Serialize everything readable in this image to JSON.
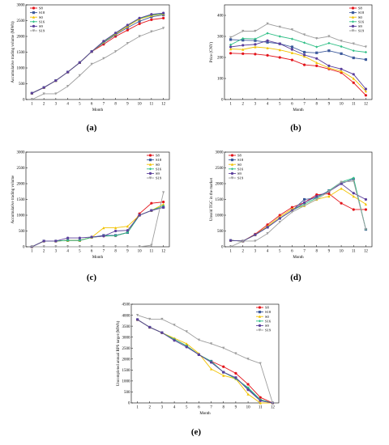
{
  "colors": {
    "S8": "#e3141b",
    "S18": "#3d5a9c",
    "S0": "#f2c300",
    "S16": "#2fbf86",
    "S9": "#5b3f9b",
    "S19": "#9e9e9e"
  },
  "chart_data": [
    {
      "id": "a",
      "caption": "(a)",
      "type": "line",
      "xlabel": "Month",
      "ylabel": "Accumulative trading volume (MWh)",
      "x": [
        1,
        2,
        3,
        4,
        5,
        6,
        7,
        8,
        9,
        10,
        11,
        12
      ],
      "xlim": [
        0.5,
        12.5
      ],
      "ylim": [
        0,
        3000
      ],
      "yticks": [
        0,
        500,
        1000,
        1500,
        2000,
        2500,
        3000
      ],
      "legend": "top-left",
      "series": [
        {
          "name": "S8",
          "values": [
            200,
            380,
            600,
            870,
            1170,
            1520,
            1750,
            2000,
            2200,
            2400,
            2530,
            2580
          ]
        },
        {
          "name": "S18",
          "values": [
            200,
            380,
            600,
            870,
            1170,
            1520,
            1800,
            2050,
            2280,
            2480,
            2620,
            2680
          ]
        },
        {
          "name": "S0",
          "values": [
            200,
            380,
            600,
            870,
            1170,
            1520,
            1820,
            2080,
            2320,
            2550,
            2660,
            2710
          ]
        },
        {
          "name": "S16",
          "values": [
            200,
            380,
            600,
            870,
            1170,
            1520,
            1830,
            2100,
            2350,
            2570,
            2680,
            2720
          ]
        },
        {
          "name": "S9",
          "values": [
            200,
            380,
            600,
            870,
            1170,
            1520,
            1850,
            2110,
            2360,
            2580,
            2700,
            2740
          ]
        },
        {
          "name": "S19",
          "values": [
            0,
            180,
            180,
            420,
            760,
            1120,
            1300,
            1520,
            1780,
            2000,
            2150,
            2260
          ]
        }
      ]
    },
    {
      "id": "b",
      "caption": "(b)",
      "type": "line",
      "xlabel": "Month",
      "ylabel": "Price (CNY)",
      "x": [
        1,
        2,
        3,
        4,
        5,
        6,
        7,
        8,
        9,
        10,
        11,
        12
      ],
      "xlim": [
        0.5,
        12.5
      ],
      "ylim": [
        0,
        450
      ],
      "yticks": [
        0,
        100,
        200,
        300,
        400
      ],
      "legend": "top-right",
      "series": [
        {
          "name": "S8",
          "values": [
            220,
            218,
            216,
            210,
            200,
            188,
            165,
            160,
            145,
            128,
            80,
            20
          ]
        },
        {
          "name": "S18",
          "values": [
            285,
            282,
            280,
            272,
            265,
            250,
            225,
            222,
            232,
            218,
            198,
            190
          ]
        },
        {
          "name": "S0",
          "values": [
            240,
            238,
            250,
            245,
            236,
            222,
            205,
            175,
            150,
            135,
            100,
            40
          ]
        },
        {
          "name": "S16",
          "values": [
            260,
            290,
            288,
            315,
            300,
            288,
            270,
            250,
            268,
            252,
            232,
            225
          ]
        },
        {
          "name": "S9",
          "values": [
            250,
            258,
            262,
            280,
            265,
            238,
            212,
            195,
            160,
            145,
            120,
            50
          ]
        },
        {
          "name": "S19",
          "values": [
            295,
            325,
            325,
            360,
            345,
            332,
            308,
            290,
            300,
            278,
            265,
            250
          ]
        }
      ]
    },
    {
      "id": "c",
      "caption": "(c)",
      "type": "line",
      "xlabel": "Month",
      "ylabel": "Accumulative trading volume",
      "x": [
        1,
        2,
        3,
        4,
        5,
        6,
        7,
        8,
        9,
        10,
        11,
        12
      ],
      "xlim": [
        0.5,
        12.5
      ],
      "ylim": [
        0,
        3000
      ],
      "yticks": [
        0,
        500,
        1000,
        1500,
        2000,
        2500,
        3000
      ],
      "legend": "top-right",
      "series": [
        {
          "name": "S8",
          "values": [
            0,
            180,
            180,
            200,
            200,
            300,
            340,
            350,
            450,
            1050,
            1380,
            1420
          ]
        },
        {
          "name": "S18",
          "values": [
            0,
            180,
            180,
            200,
            200,
            300,
            360,
            360,
            450,
            1000,
            1150,
            1250
          ]
        },
        {
          "name": "S0",
          "values": [
            0,
            180,
            180,
            200,
            200,
            300,
            600,
            600,
            650,
            1000,
            1150,
            1350
          ]
        },
        {
          "name": "S16",
          "values": [
            0,
            180,
            180,
            200,
            200,
            300,
            340,
            350,
            450,
            1000,
            1150,
            1300
          ]
        },
        {
          "name": "S9",
          "values": [
            0,
            180,
            180,
            280,
            280,
            310,
            340,
            500,
            520,
            1000,
            1150,
            1250
          ]
        },
        {
          "name": "S19",
          "values": [
            0,
            0,
            0,
            0,
            0,
            0,
            0,
            0,
            0,
            0,
            50,
            1720
          ]
        }
      ]
    },
    {
      "id": "d",
      "caption": "(d)",
      "type": "line",
      "xlabel": "Month",
      "ylabel": "Unsold TGC in the market",
      "x": [
        1,
        2,
        3,
        4,
        5,
        6,
        7,
        8,
        9,
        10,
        11,
        12
      ],
      "xlim": [
        0.5,
        12.5
      ],
      "ylim": [
        0,
        3000
      ],
      "yticks": [
        0,
        500,
        1000,
        1500,
        2000,
        2500,
        3000
      ],
      "legend": "top-left",
      "series": [
        {
          "name": "S8",
          "values": [
            200,
            180,
            400,
            700,
            1000,
            1250,
            1400,
            1650,
            1680,
            1380,
            1180,
            1180
          ]
        },
        {
          "name": "S18",
          "values": [
            200,
            180,
            380,
            620,
            900,
            1150,
            1500,
            1550,
            1780,
            2000,
            2150,
            550
          ]
        },
        {
          "name": "S0",
          "values": [
            200,
            180,
            380,
            650,
            950,
            1200,
            1300,
            1500,
            1600,
            1850,
            1600,
            1350
          ]
        },
        {
          "name": "S16",
          "values": [
            200,
            180,
            380,
            620,
            900,
            1150,
            1350,
            1550,
            1780,
            2050,
            2180,
            550
          ]
        },
        {
          "name": "S9",
          "values": [
            200,
            180,
            380,
            620,
            900,
            1150,
            1400,
            1600,
            1750,
            2000,
            1700,
            1500
          ]
        },
        {
          "name": "S19",
          "values": [
            0,
            180,
            180,
            420,
            780,
            1100,
            1300,
            1500,
            1750,
            2050,
            2080,
            550
          ]
        }
      ]
    },
    {
      "id": "e",
      "caption": "(e)",
      "type": "line",
      "xlabel": "Month",
      "ylabel": "Uncompleted annual RPS target (MWh)",
      "x": [
        1,
        2,
        3,
        4,
        5,
        6,
        7,
        8,
        9,
        10,
        11,
        12
      ],
      "xlim": [
        0.5,
        12.5
      ],
      "ylim": [
        0,
        4500
      ],
      "yticks": [
        0,
        500,
        1000,
        1500,
        2000,
        2500,
        3000,
        3500,
        4000,
        4500
      ],
      "legend": "top-right",
      "series": [
        {
          "name": "S8",
          "values": [
            3800,
            3450,
            3200,
            2900,
            2600,
            2200,
            1900,
            1650,
            1350,
            850,
            250,
            0
          ]
        },
        {
          "name": "S18",
          "values": [
            3800,
            3450,
            3200,
            2900,
            2600,
            2200,
            1900,
            1400,
            1150,
            650,
            120,
            0
          ]
        },
        {
          "name": "S0",
          "values": [
            3800,
            3450,
            3200,
            2950,
            2700,
            2250,
            1550,
            1250,
            1100,
            400,
            0,
            0
          ]
        },
        {
          "name": "S16",
          "values": [
            3800,
            3450,
            3200,
            2900,
            2600,
            2200,
            1900,
            1400,
            1100,
            700,
            150,
            0
          ]
        },
        {
          "name": "S9",
          "values": [
            3800,
            3450,
            3200,
            2850,
            2550,
            2200,
            1850,
            1400,
            1150,
            600,
            100,
            0
          ]
        },
        {
          "name": "S19",
          "values": [
            4000,
            3820,
            3820,
            3550,
            3250,
            2870,
            2700,
            2500,
            2250,
            2000,
            1800,
            0
          ]
        }
      ]
    }
  ]
}
